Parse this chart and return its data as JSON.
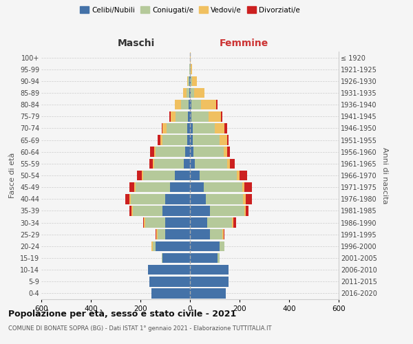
{
  "age_groups": [
    "0-4",
    "5-9",
    "10-14",
    "15-19",
    "20-24",
    "25-29",
    "30-34",
    "35-39",
    "40-44",
    "45-49",
    "50-54",
    "55-59",
    "60-64",
    "65-69",
    "70-74",
    "75-79",
    "80-84",
    "85-89",
    "90-94",
    "95-99",
    "100+"
  ],
  "birth_years": [
    "2016-2020",
    "2011-2015",
    "2006-2010",
    "2001-2005",
    "1996-2000",
    "1991-1995",
    "1986-1990",
    "1981-1985",
    "1976-1980",
    "1971-1975",
    "1966-1970",
    "1961-1965",
    "1956-1960",
    "1951-1955",
    "1946-1950",
    "1941-1945",
    "1936-1940",
    "1931-1935",
    "1926-1930",
    "1921-1925",
    "≤ 1920"
  ],
  "maschi": {
    "celibi": [
      155,
      165,
      170,
      110,
      140,
      100,
      100,
      110,
      100,
      80,
      60,
      25,
      20,
      10,
      10,
      8,
      5,
      2,
      2,
      0,
      0
    ],
    "coniugati": [
      0,
      0,
      0,
      5,
      10,
      30,
      80,
      120,
      140,
      140,
      130,
      120,
      120,
      100,
      85,
      50,
      30,
      12,
      5,
      2,
      0
    ],
    "vedovi": [
      0,
      0,
      0,
      0,
      5,
      5,
      5,
      5,
      5,
      5,
      5,
      5,
      5,
      10,
      15,
      20,
      25,
      15,
      5,
      2,
      0
    ],
    "divorziati": [
      0,
      0,
      0,
      0,
      0,
      5,
      5,
      10,
      15,
      20,
      20,
      15,
      15,
      10,
      5,
      5,
      0,
      0,
      0,
      0,
      0
    ]
  },
  "femmine": {
    "nubili": [
      145,
      155,
      155,
      110,
      120,
      80,
      70,
      80,
      65,
      55,
      40,
      20,
      15,
      10,
      10,
      5,
      5,
      2,
      2,
      0,
      0
    ],
    "coniugate": [
      0,
      0,
      0,
      10,
      20,
      50,
      100,
      140,
      150,
      155,
      150,
      130,
      120,
      110,
      90,
      70,
      40,
      15,
      5,
      2,
      0
    ],
    "vedove": [
      0,
      0,
      0,
      0,
      0,
      5,
      5,
      5,
      10,
      10,
      10,
      10,
      15,
      30,
      40,
      50,
      60,
      40,
      20,
      5,
      2
    ],
    "divorziate": [
      0,
      0,
      0,
      0,
      0,
      5,
      10,
      10,
      25,
      30,
      30,
      20,
      10,
      5,
      10,
      5,
      5,
      0,
      0,
      0,
      0
    ]
  },
  "colors": {
    "celibi": "#4472a8",
    "coniugati": "#b5c99a",
    "vedovi": "#f0c060",
    "divorziati": "#cc2020"
  },
  "legend_labels": [
    "Celibi/Nubili",
    "Coniugati/e",
    "Vedovi/e",
    "Divorziati/e"
  ],
  "title": "Popolazione per età, sesso e stato civile - 2021",
  "subtitle": "COMUNE DI BONATE SOPRA (BG) - Dati ISTAT 1° gennaio 2021 - Elaborazione TUTTITALIA.IT",
  "xlabel_left": "Maschi",
  "xlabel_right": "Femmine",
  "ylabel_left": "Fasce di età",
  "ylabel_right": "Anni di nascita",
  "xlim": 600,
  "bg_color": "#f5f5f5",
  "bar_height": 0.85
}
